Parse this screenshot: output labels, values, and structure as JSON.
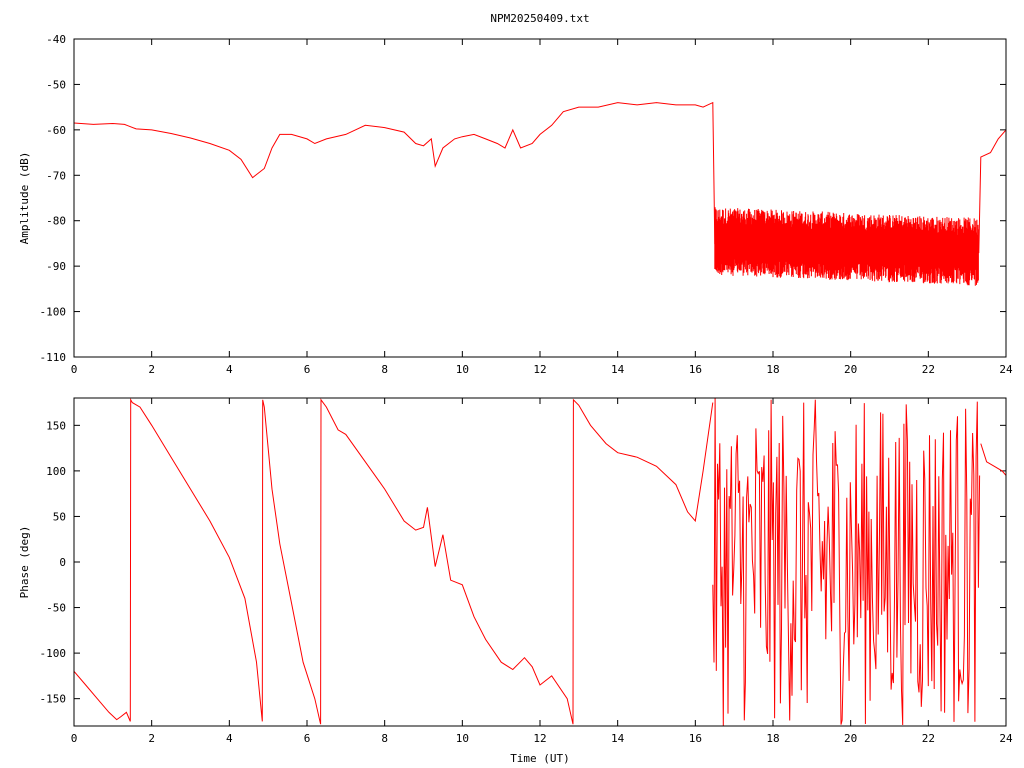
{
  "chart_data": [
    {
      "type": "line",
      "title": "NPM20250409.txt",
      "xlabel": "",
      "ylabel": "Amplitude (dB)",
      "xlim": [
        0,
        24
      ],
      "ylim": [
        -110,
        -40
      ],
      "x_ticks": [
        "0",
        "2",
        "4",
        "6",
        "8",
        "10",
        "12",
        "14",
        "16",
        "18",
        "20",
        "22",
        "24"
      ],
      "y_ticks": [
        "-40",
        "-50",
        "-60",
        "-70",
        "-80",
        "-90",
        "-100",
        "-110"
      ],
      "color": "#ff0000",
      "series": [
        {
          "x": [
            0,
            0.5,
            1.0,
            1.3,
            1.6,
            2.0,
            2.5,
            3.0,
            3.5,
            4.0,
            4.3,
            4.6,
            4.9,
            5.1,
            5.3,
            5.6,
            6.0,
            6.2,
            6.5,
            7.0,
            7.5,
            8.0,
            8.5,
            8.8,
            9.0,
            9.2,
            9.3,
            9.5,
            9.8,
            10.0,
            10.3,
            10.6,
            10.9,
            11.1,
            11.3,
            11.5,
            11.8,
            12.0,
            12.3,
            12.6,
            13.0,
            13.5,
            14.0,
            14.5,
            15.0,
            15.5,
            16.0,
            16.2,
            16.45,
            16.5,
            17.0,
            17.5,
            18.0,
            18.5,
            19.0,
            19.5,
            20.0,
            20.5,
            21.0,
            21.5,
            22.0,
            22.5,
            23.0,
            23.3,
            23.35,
            23.6,
            23.8,
            24.0
          ],
          "y": [
            -58.5,
            -58.8,
            -58.6,
            -58.8,
            -59.8,
            -60,
            -60.8,
            -61.8,
            -63,
            -64.5,
            -66.5,
            -70.5,
            -68.5,
            -64,
            -61,
            -61,
            -62,
            -63,
            -62,
            -61,
            -59,
            -59.5,
            -60.5,
            -63,
            -63.5,
            -62,
            -68,
            -64,
            -62,
            -61.5,
            -61,
            -62,
            -63,
            -64,
            -60,
            -64,
            -63,
            -61,
            -59,
            -56,
            -55,
            -55,
            -54,
            -54.5,
            -54,
            -54.5,
            -54.5,
            -55,
            -54,
            -85,
            -83,
            -84,
            -84,
            -84.5,
            -85,
            -85,
            -85.5,
            -86,
            -86,
            -86.5,
            -87,
            -87,
            -86.5,
            -87,
            -66,
            -65,
            -62,
            -60
          ]
        }
      ]
    },
    {
      "type": "line",
      "title": "",
      "xlabel": "Time (UT)",
      "ylabel": "Phase (deg)",
      "xlim": [
        0,
        24
      ],
      "ylim": [
        -180,
        180
      ],
      "x_ticks": [
        "0",
        "2",
        "4",
        "6",
        "8",
        "10",
        "12",
        "14",
        "16",
        "18",
        "20",
        "22",
        "24"
      ],
      "y_ticks": [
        "150",
        "100",
        "50",
        "0",
        "-50",
        "-100",
        "-150"
      ],
      "color": "#ff0000",
      "series": [
        {
          "x": [
            0,
            0.3,
            0.6,
            0.9,
            1.1,
            1.2,
            1.35,
            1.45,
            1.46,
            1.5,
            1.7,
            2.0,
            2.5,
            3.0,
            3.5,
            4.0,
            4.4,
            4.7,
            4.85,
            4.86,
            4.9,
            5.1,
            5.3,
            5.6,
            5.9,
            6.2,
            6.35,
            6.36,
            6.5,
            6.8,
            7.0,
            7.5,
            8.0,
            8.5,
            8.8,
            9.0,
            9.1,
            9.3,
            9.5,
            9.7,
            10.0,
            10.3,
            10.6,
            11.0,
            11.3,
            11.6,
            11.8,
            12.0,
            12.3,
            12.7,
            12.85,
            12.86,
            13.0,
            13.3,
            13.7,
            14.0,
            14.5,
            15.0,
            15.5,
            15.8,
            16.0,
            16.2,
            16.45
          ],
          "y": [
            -120,
            -135,
            -150,
            -165,
            -173,
            -170,
            -165,
            -175,
            178,
            175,
            170,
            150,
            115,
            80,
            45,
            5,
            -40,
            -110,
            -175,
            178,
            170,
            80,
            20,
            -45,
            -110,
            -150,
            -178,
            178,
            170,
            145,
            140,
            110,
            80,
            45,
            35,
            38,
            60,
            -5,
            30,
            -20,
            -25,
            -60,
            -85,
            -110,
            -118,
            -105,
            -115,
            -135,
            -125,
            -150,
            -178,
            178,
            172,
            150,
            130,
            120,
            115,
            105,
            85,
            55,
            45,
            100,
            175
          ]
        }
      ]
    }
  ]
}
